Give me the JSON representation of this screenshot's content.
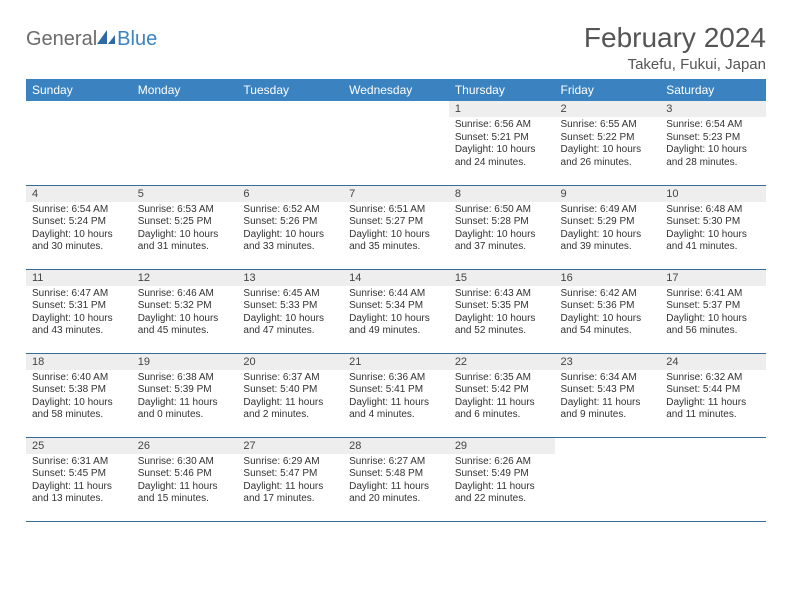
{
  "logo": {
    "part1": "General",
    "part2": "Blue"
  },
  "title": "February 2024",
  "location": "Takefu, Fukui, Japan",
  "colors": {
    "header_bg": "#3b83c0",
    "header_text": "#ffffff",
    "daynum_bg": "#eeeeee",
    "border": "#3b6a94",
    "logo_gray": "#6b6b6b",
    "logo_blue": "#3b83c0"
  },
  "weekdays": [
    "Sunday",
    "Monday",
    "Tuesday",
    "Wednesday",
    "Thursday",
    "Friday",
    "Saturday"
  ],
  "cells": [
    {
      "blank": true
    },
    {
      "blank": true
    },
    {
      "blank": true
    },
    {
      "blank": true
    },
    {
      "n": "1",
      "sr": "6:56 AM",
      "ss": "5:21 PM",
      "dl": "10 hours and 24 minutes."
    },
    {
      "n": "2",
      "sr": "6:55 AM",
      "ss": "5:22 PM",
      "dl": "10 hours and 26 minutes."
    },
    {
      "n": "3",
      "sr": "6:54 AM",
      "ss": "5:23 PM",
      "dl": "10 hours and 28 minutes."
    },
    {
      "n": "4",
      "sr": "6:54 AM",
      "ss": "5:24 PM",
      "dl": "10 hours and 30 minutes."
    },
    {
      "n": "5",
      "sr": "6:53 AM",
      "ss": "5:25 PM",
      "dl": "10 hours and 31 minutes."
    },
    {
      "n": "6",
      "sr": "6:52 AM",
      "ss": "5:26 PM",
      "dl": "10 hours and 33 minutes."
    },
    {
      "n": "7",
      "sr": "6:51 AM",
      "ss": "5:27 PM",
      "dl": "10 hours and 35 minutes."
    },
    {
      "n": "8",
      "sr": "6:50 AM",
      "ss": "5:28 PM",
      "dl": "10 hours and 37 minutes."
    },
    {
      "n": "9",
      "sr": "6:49 AM",
      "ss": "5:29 PM",
      "dl": "10 hours and 39 minutes."
    },
    {
      "n": "10",
      "sr": "6:48 AM",
      "ss": "5:30 PM",
      "dl": "10 hours and 41 minutes."
    },
    {
      "n": "11",
      "sr": "6:47 AM",
      "ss": "5:31 PM",
      "dl": "10 hours and 43 minutes."
    },
    {
      "n": "12",
      "sr": "6:46 AM",
      "ss": "5:32 PM",
      "dl": "10 hours and 45 minutes."
    },
    {
      "n": "13",
      "sr": "6:45 AM",
      "ss": "5:33 PM",
      "dl": "10 hours and 47 minutes."
    },
    {
      "n": "14",
      "sr": "6:44 AM",
      "ss": "5:34 PM",
      "dl": "10 hours and 49 minutes."
    },
    {
      "n": "15",
      "sr": "6:43 AM",
      "ss": "5:35 PM",
      "dl": "10 hours and 52 minutes."
    },
    {
      "n": "16",
      "sr": "6:42 AM",
      "ss": "5:36 PM",
      "dl": "10 hours and 54 minutes."
    },
    {
      "n": "17",
      "sr": "6:41 AM",
      "ss": "5:37 PM",
      "dl": "10 hours and 56 minutes."
    },
    {
      "n": "18",
      "sr": "6:40 AM",
      "ss": "5:38 PM",
      "dl": "10 hours and 58 minutes."
    },
    {
      "n": "19",
      "sr": "6:38 AM",
      "ss": "5:39 PM",
      "dl": "11 hours and 0 minutes."
    },
    {
      "n": "20",
      "sr": "6:37 AM",
      "ss": "5:40 PM",
      "dl": "11 hours and 2 minutes."
    },
    {
      "n": "21",
      "sr": "6:36 AM",
      "ss": "5:41 PM",
      "dl": "11 hours and 4 minutes."
    },
    {
      "n": "22",
      "sr": "6:35 AM",
      "ss": "5:42 PM",
      "dl": "11 hours and 6 minutes."
    },
    {
      "n": "23",
      "sr": "6:34 AM",
      "ss": "5:43 PM",
      "dl": "11 hours and 9 minutes."
    },
    {
      "n": "24",
      "sr": "6:32 AM",
      "ss": "5:44 PM",
      "dl": "11 hours and 11 minutes."
    },
    {
      "n": "25",
      "sr": "6:31 AM",
      "ss": "5:45 PM",
      "dl": "11 hours and 13 minutes."
    },
    {
      "n": "26",
      "sr": "6:30 AM",
      "ss": "5:46 PM",
      "dl": "11 hours and 15 minutes."
    },
    {
      "n": "27",
      "sr": "6:29 AM",
      "ss": "5:47 PM",
      "dl": "11 hours and 17 minutes."
    },
    {
      "n": "28",
      "sr": "6:27 AM",
      "ss": "5:48 PM",
      "dl": "11 hours and 20 minutes."
    },
    {
      "n": "29",
      "sr": "6:26 AM",
      "ss": "5:49 PM",
      "dl": "11 hours and 22 minutes."
    },
    {
      "blank": true
    },
    {
      "blank": true
    }
  ],
  "labels": {
    "sunrise": "Sunrise: ",
    "sunset": "Sunset: ",
    "daylight": "Daylight: "
  }
}
